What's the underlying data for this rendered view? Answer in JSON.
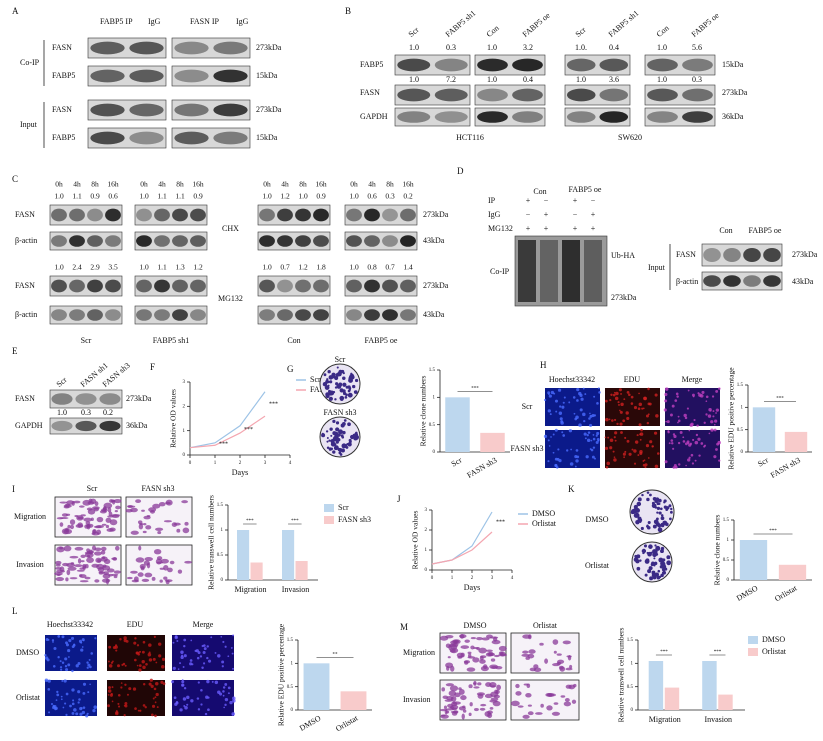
{
  "panels": {
    "A": {
      "label": "A",
      "lanes": [
        "FABP5 IP",
        "IgG",
        "FASN IP",
        "IgG"
      ],
      "groups": [
        "Co-IP",
        "Input"
      ],
      "rows": [
        "FASN",
        "FABP5",
        "FASN",
        "FABP5"
      ],
      "sizes": [
        "273kDa",
        "15kDa",
        "273kDa",
        "15kDa"
      ]
    },
    "B": {
      "label": "B",
      "lanes": [
        "Scr",
        "FABP5 sh1",
        "Con",
        "FABP5 oe",
        "Scr",
        "FABP5 sh1",
        "Con",
        "FABP5 oe"
      ],
      "fabp5_ratios": [
        "1.0",
        "0.3",
        "1.0",
        "3.2",
        "1.0.",
        "0.4",
        "1.0",
        "5.6"
      ],
      "fasn_ratios": [
        "1.0",
        "7.2",
        "1.0",
        "0.4",
        "1.0",
        "3.6",
        "1.0",
        "0.3"
      ],
      "rows": [
        "FABP5",
        "FASN",
        "GAPDH"
      ],
      "sizes": [
        "15kDa",
        "273kDa",
        "36kDa"
      ],
      "cells": [
        "HCT116",
        "SW620"
      ]
    },
    "C": {
      "label": "C",
      "times": [
        "0h",
        "4h",
        "8h",
        "16h"
      ],
      "chx_ratios": [
        [
          "1.0",
          "1.1",
          "0.9",
          "0.6"
        ],
        [
          "1.0",
          "1.1",
          "1.1",
          "0.9"
        ],
        [
          "1.0",
          "1.2",
          "1.0",
          "0.9"
        ],
        [
          "1.0",
          "0.6",
          "0.3",
          "0.2"
        ]
      ],
      "mg132_ratios": [
        [
          "1.0",
          "2.4",
          "2.9",
          "3.5"
        ],
        [
          "1.0",
          "1.1",
          "1.3",
          "1.2"
        ],
        [
          "1.0",
          "0.7",
          "1.2",
          "1.8"
        ],
        [
          "1.0",
          "0.8",
          "0.7",
          "1.4"
        ]
      ],
      "rows": [
        "FASN",
        "β-actin",
        "FASN",
        "β-actin"
      ],
      "treatments": [
        "CHX",
        "MG132"
      ],
      "sizes": [
        "273kDa",
        "43kDa",
        "273kDa",
        "43kDa"
      ],
      "groups": [
        "Scr",
        "FABP5 sh1",
        "Con",
        "FABP5 oe"
      ]
    },
    "D": {
      "label": "D",
      "rows": [
        "IP",
        "IgG",
        "MG132"
      ],
      "signs": [
        [
          "+",
          "−",
          "+",
          "−"
        ],
        [
          "−",
          "+",
          "−",
          "+"
        ],
        [
          "+",
          "+",
          "+",
          "+"
        ]
      ],
      "groups": [
        "Con",
        "FABP5 oe"
      ],
      "coip": "Co-IP",
      "band": "Ub-HA",
      "coip_size": "273kDa",
      "input": "Input",
      "input_rows": [
        "FASN",
        "β-actin"
      ],
      "input_sizes": [
        "273kDa",
        "43kDa"
      ]
    },
    "E": {
      "label": "E",
      "lanes": [
        "Scr",
        "FASN sh1",
        "FASN sh3"
      ],
      "rows": [
        "FASN",
        "GAPDH"
      ],
      "sizes": [
        "273kDa",
        "36kDa"
      ],
      "ratios": [
        "1.0",
        "0.3",
        "0.2"
      ]
    },
    "F": {
      "label": "F",
      "chart": {
        "type": "line",
        "ylabel": "Relative OD values",
        "xlabel": "Days",
        "x": [
          0,
          1,
          2,
          3
        ],
        "series": [
          {
            "name": "Scr",
            "color": "#9dc3e6",
            "values": [
              0.3,
              0.5,
              1.2,
              2.6
            ]
          },
          {
            "name": "FASN sh3",
            "color": "#f4a6b0",
            "values": [
              0.3,
              0.4,
              0.9,
              1.6
            ]
          }
        ],
        "xlim": [
          0,
          4
        ],
        "xticks": [
          0,
          1,
          2,
          3,
          4
        ],
        "ylim": [
          0,
          3
        ],
        "yticks": [
          0,
          1,
          2,
          3
        ],
        "annotations": [
          "***",
          "***",
          "***"
        ]
      }
    },
    "G": {
      "label": "G",
      "rows": [
        "Scr",
        "FASN sh3"
      ],
      "chart": {
        "type": "bar",
        "ylabel": "Relative clone numbers",
        "categories": [
          "Scr",
          "FASN sh3"
        ],
        "values": [
          1,
          0.35
        ],
        "colors": [
          "#bdd7ee",
          "#f8cbcb"
        ],
        "ylim": [
          0,
          1.5
        ],
        "yticks": [
          0,
          0.5,
          1,
          1.5
        ],
        "annotations": [
          "***"
        ]
      }
    },
    "H": {
      "label": "H",
      "columns": [
        "Hoechst33342",
        "EDU",
        "Merge"
      ],
      "rows": [
        "Scr",
        "FASN sh3"
      ],
      "chart": {
        "type": "bar",
        "ylabel": "Relative EDU positive percentage",
        "categories": [
          "Scr",
          "FASN sh3"
        ],
        "values": [
          1,
          0.45
        ],
        "colors": [
          "#bdd7ee",
          "#f8cbcb"
        ],
        "ylim": [
          0,
          1.5
        ],
        "yticks": [
          0,
          0.5,
          1,
          1.5
        ],
        "annotations": [
          "***"
        ]
      }
    },
    "I": {
      "label": "I",
      "columns": [
        "Scr",
        "FASN sh3"
      ],
      "rows": [
        "Migration",
        "Invasion"
      ],
      "chart": {
        "type": "grouped_bar",
        "ylabel": "Relative transwell cell numbers",
        "categories": [
          "Migration",
          "Invasion"
        ],
        "series": [
          {
            "name": "Scr",
            "color": "#bdd7ee",
            "values": [
              1,
              1
            ]
          },
          {
            "name": "FASN sh3",
            "color": "#f8cbcb",
            "values": [
              0.35,
              0.38
            ]
          }
        ],
        "ylim": [
          0,
          1.5
        ],
        "yticks": [
          0,
          0.5,
          1,
          1.5
        ],
        "annotations": [
          "***",
          "***"
        ]
      }
    },
    "J": {
      "label": "J",
      "chart": {
        "type": "line",
        "ylabel": "Relative OD values",
        "xlabel": "Days",
        "x": [
          0,
          1,
          2,
          3
        ],
        "series": [
          {
            "name": "DMSO",
            "color": "#9dc3e6",
            "values": [
              0.3,
              0.5,
              1.2,
              2.9
            ]
          },
          {
            "name": "Orlistat",
            "color": "#f4a6b0",
            "values": [
              0.3,
              0.5,
              1.0,
              1.9
            ]
          }
        ],
        "xlim": [
          0,
          4
        ],
        "xticks": [
          0,
          1,
          2,
          3,
          4
        ],
        "ylim": [
          0,
          3
        ],
        "yticks": [
          0,
          1,
          2,
          3
        ],
        "annotations": [
          "***"
        ]
      }
    },
    "K": {
      "label": "K",
      "rows": [
        "DMSO",
        "Orlistat"
      ],
      "chart": {
        "type": "bar",
        "ylabel": "Relative clone numbers",
        "categories": [
          "DMSO",
          "Orlistat"
        ],
        "values": [
          1,
          0.38
        ],
        "colors": [
          "#bdd7ee",
          "#f8cbcb"
        ],
        "ylim": [
          0,
          1.5
        ],
        "yticks": [
          0,
          0.5,
          1,
          1.5
        ],
        "annotations": [
          "***"
        ]
      }
    },
    "L": {
      "label": "L",
      "columns": [
        "Hoechst33342",
        "EDU",
        "Merge"
      ],
      "rows": [
        "DMSO",
        "Orlistat"
      ],
      "chart": {
        "type": "bar",
        "ylabel": "Relative EDU positive percentage",
        "categories": [
          "DMSO",
          "Orlistat"
        ],
        "values": [
          1,
          0.4
        ],
        "colors": [
          "#bdd7ee",
          "#f8cbcb"
        ],
        "ylim": [
          0,
          1.5
        ],
        "yticks": [
          0,
          0.5,
          1,
          1.5
        ],
        "annotations": [
          "**"
        ]
      }
    },
    "M": {
      "label": "M",
      "columns": [
        "DMSO",
        "Orlistat"
      ],
      "rows": [
        "Migration",
        "Invasion"
      ],
      "chart": {
        "type": "grouped_bar",
        "ylabel": "Relative transwell cell numbers",
        "categories": [
          "Migration",
          "Invasion"
        ],
        "series": [
          {
            "name": "DMSO",
            "color": "#bdd7ee",
            "values": [
              1.05,
              1.05
            ]
          },
          {
            "name": "Orlistat",
            "color": "#f8cbcb",
            "values": [
              0.48,
              0.33
            ]
          }
        ],
        "ylim": [
          0,
          1.5
        ],
        "yticks": [
          0,
          0.5,
          1,
          1.5
        ],
        "annotations": [
          "***",
          "***"
        ]
      }
    }
  }
}
